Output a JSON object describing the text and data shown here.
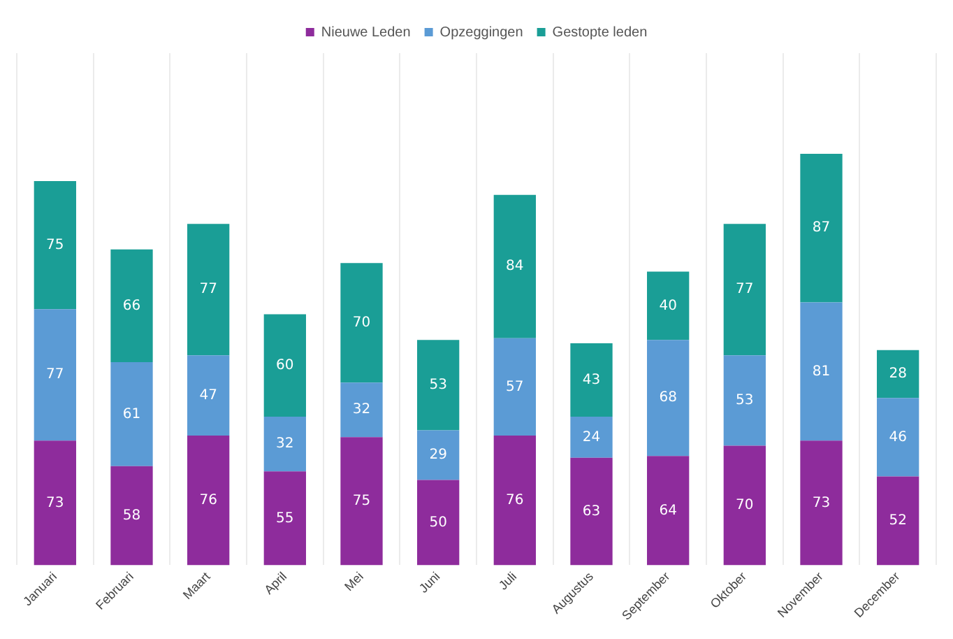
{
  "chart_data": {
    "type": "bar",
    "stacked": true,
    "categories": [
      "Januari",
      "Februari",
      "Maart",
      "April",
      "Mei",
      "Juni",
      "Juli",
      "Augustus",
      "September",
      "Oktober",
      "November",
      "December"
    ],
    "series": [
      {
        "name": "Nieuwe Leden",
        "color": "#8e2c9c",
        "values": [
          73,
          58,
          76,
          55,
          75,
          50,
          76,
          63,
          64,
          70,
          73,
          52
        ]
      },
      {
        "name": "Opzeggingen",
        "color": "#5b9bd5",
        "values": [
          77,
          61,
          47,
          32,
          32,
          29,
          57,
          24,
          68,
          53,
          81,
          46
        ]
      },
      {
        "name": "Gestopte leden",
        "color": "#1a9e96",
        "values": [
          75,
          66,
          77,
          60,
          70,
          53,
          84,
          43,
          40,
          77,
          87,
          28
        ]
      }
    ],
    "ylim": [
      0,
      300
    ],
    "data_labels": true,
    "grid": "x",
    "legend": "top",
    "tick_labels": "x"
  }
}
